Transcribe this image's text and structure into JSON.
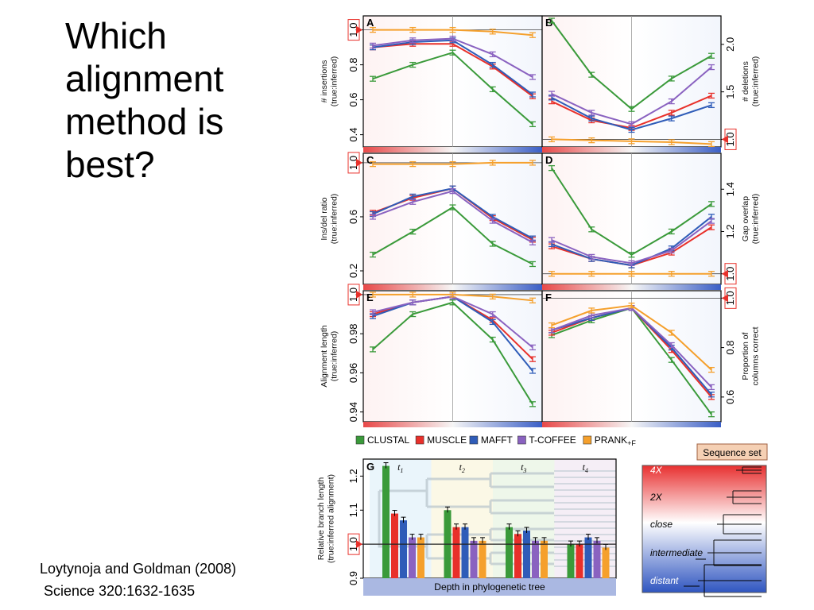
{
  "slide": {
    "title": "Which\nalignment\nmethod is\nbest?",
    "citation": "Loytynoja and Goldman (2008)\n Science 320:1632-1635"
  },
  "colors": {
    "CLUSTAL": "#3a9a3a",
    "MUSCLE": "#e8302a",
    "MAFFT": "#2f5cb8",
    "T-COFFEE": "#8a62c0",
    "PRANK": "#f5a02c",
    "reference_marker": "#e8302a"
  },
  "legend": [
    {
      "key": "CLUSTAL",
      "label": "CLUSTAL"
    },
    {
      "key": "MUSCLE",
      "label": "MUSCLE"
    },
    {
      "key": "MAFFT",
      "label": "MAFFT"
    },
    {
      "key": "T-COFFEE",
      "label": "T-COFFEE"
    },
    {
      "key": "PRANK",
      "label": "PRANK",
      "subscript": "+F"
    }
  ],
  "chart_data": [
    {
      "panel": "A",
      "type": "line",
      "ylabel": "# insertions\n(true:inferred)",
      "ylim": [
        0.33,
        1.08
      ],
      "yticks": [
        "1.0",
        "0.8",
        "0.6",
        "0.4"
      ],
      "ytick_values": [
        1.0,
        0.8,
        0.6,
        0.4
      ],
      "reference_line": 1.0,
      "axis_side": "left",
      "x": [
        1,
        2,
        3,
        4,
        5
      ],
      "series": [
        {
          "name": "CLUSTAL",
          "values": [
            0.72,
            0.8,
            0.87,
            0.66,
            0.46
          ]
        },
        {
          "name": "MUSCLE",
          "values": [
            0.9,
            0.92,
            0.92,
            0.79,
            0.62
          ]
        },
        {
          "name": "MAFFT",
          "values": [
            0.9,
            0.93,
            0.94,
            0.8,
            0.63
          ]
        },
        {
          "name": "T-COFFEE",
          "values": [
            0.91,
            0.94,
            0.95,
            0.86,
            0.73
          ]
        },
        {
          "name": "PRANK",
          "values": [
            1.0,
            1.0,
            1.0,
            0.99,
            0.97
          ]
        }
      ]
    },
    {
      "panel": "B",
      "type": "line",
      "ylabel": "# deletions\n(true:inferred)",
      "ylim": [
        0.92,
        2.3
      ],
      "yticks": [
        "2.0",
        "1.5",
        "1.0"
      ],
      "ytick_values": [
        2.0,
        1.5,
        1.0
      ],
      "reference_line": 1.0,
      "axis_side": "right",
      "x": [
        1,
        2,
        3,
        4,
        5
      ],
      "series": [
        {
          "name": "CLUSTAL",
          "values": [
            2.25,
            1.68,
            1.32,
            1.64,
            1.88
          ]
        },
        {
          "name": "MUSCLE",
          "values": [
            1.4,
            1.2,
            1.12,
            1.28,
            1.46
          ]
        },
        {
          "name": "MAFFT",
          "values": [
            1.44,
            1.22,
            1.1,
            1.22,
            1.36
          ]
        },
        {
          "name": "T-COFFEE",
          "values": [
            1.48,
            1.28,
            1.16,
            1.4,
            1.76
          ]
        },
        {
          "name": "PRANK",
          "values": [
            1.0,
            0.99,
            0.98,
            0.97,
            0.95
          ]
        }
      ]
    },
    {
      "panel": "C",
      "type": "line",
      "ylabel": "Ins/del ratio\n(true:inferred)",
      "ylim": [
        0.1,
        1.07
      ],
      "yticks": [
        "1.0",
        "0.6",
        "0.2"
      ],
      "ytick_values": [
        1.0,
        0.6,
        0.2
      ],
      "reference_line": 1.0,
      "axis_side": "left",
      "x": [
        1,
        2,
        3,
        4,
        5
      ],
      "series": [
        {
          "name": "CLUSTAL",
          "values": [
            0.32,
            0.49,
            0.67,
            0.4,
            0.25
          ]
        },
        {
          "name": "MUSCLE",
          "values": [
            0.63,
            0.74,
            0.81,
            0.59,
            0.43
          ]
        },
        {
          "name": "MAFFT",
          "values": [
            0.62,
            0.75,
            0.81,
            0.6,
            0.44
          ]
        },
        {
          "name": "T-COFFEE",
          "values": [
            0.6,
            0.71,
            0.79,
            0.57,
            0.41
          ]
        },
        {
          "name": "PRANK",
          "values": [
            0.99,
            0.99,
            0.99,
            1.0,
            1.0
          ]
        }
      ]
    },
    {
      "panel": "D",
      "type": "line",
      "ylabel": "Gap overlap\n(true:inferred)",
      "ylim": [
        0.95,
        1.57
      ],
      "yticks": [
        "1.4",
        "1.2",
        "1.0"
      ],
      "ytick_values": [
        1.4,
        1.2,
        1.0
      ],
      "reference_line": 1.0,
      "axis_side": "right",
      "x": [
        1,
        2,
        3,
        4,
        5
      ],
      "series": [
        {
          "name": "CLUSTAL",
          "values": [
            1.5,
            1.21,
            1.09,
            1.2,
            1.33
          ]
        },
        {
          "name": "MUSCLE",
          "values": [
            1.13,
            1.07,
            1.04,
            1.1,
            1.22
          ]
        },
        {
          "name": "MAFFT",
          "values": [
            1.14,
            1.07,
            1.04,
            1.12,
            1.27
          ]
        },
        {
          "name": "T-COFFEE",
          "values": [
            1.16,
            1.08,
            1.05,
            1.11,
            1.25
          ]
        },
        {
          "name": "PRANK",
          "values": [
            1.0,
            1.0,
            1.0,
            1.0,
            1.0
          ]
        }
      ]
    },
    {
      "panel": "E",
      "type": "line",
      "ylabel": "Alignment length\n(true:inferred)",
      "ylim": [
        0.935,
        1.002
      ],
      "yticks": [
        "1.0",
        "0.98",
        "0.96",
        "0.94"
      ],
      "ytick_values": [
        1.0,
        0.98,
        0.96,
        0.94
      ],
      "reference_line": 1.0,
      "axis_side": "left",
      "x": [
        1,
        2,
        3,
        4,
        5
      ],
      "series": [
        {
          "name": "CLUSTAL",
          "values": [
            0.972,
            0.99,
            0.996,
            0.977,
            0.944
          ]
        },
        {
          "name": "MUSCLE",
          "values": [
            0.99,
            0.996,
            0.999,
            0.987,
            0.967
          ]
        },
        {
          "name": "MAFFT",
          "values": [
            0.989,
            0.996,
            0.999,
            0.986,
            0.961
          ]
        },
        {
          "name": "T-COFFEE",
          "values": [
            0.991,
            0.996,
            0.999,
            0.99,
            0.973
          ]
        },
        {
          "name": "PRANK",
          "values": [
            1.0,
            1.0,
            1.0,
            0.999,
            0.997
          ]
        }
      ]
    },
    {
      "panel": "F",
      "type": "line",
      "ylabel": "Proportion of\ncolumns correct",
      "ylim": [
        0.5,
        1.03
      ],
      "yticks": [
        "1.0",
        "0.8",
        "0.6"
      ],
      "ytick_values": [
        1.0,
        0.8,
        0.6
      ],
      "reference_line": 1.0,
      "axis_side": "right",
      "x": [
        1,
        2,
        3,
        4,
        5
      ],
      "series": [
        {
          "name": "CLUSTAL",
          "values": [
            0.85,
            0.91,
            0.96,
            0.75,
            0.53
          ]
        },
        {
          "name": "MUSCLE",
          "values": [
            0.86,
            0.92,
            0.96,
            0.79,
            0.6
          ]
        },
        {
          "name": "MAFFT",
          "values": [
            0.87,
            0.92,
            0.96,
            0.8,
            0.61
          ]
        },
        {
          "name": "T-COFFEE",
          "values": [
            0.87,
            0.93,
            0.96,
            0.81,
            0.64
          ]
        },
        {
          "name": "PRANK",
          "values": [
            0.89,
            0.95,
            0.97,
            0.86,
            0.71
          ]
        }
      ]
    },
    {
      "panel": "G",
      "type": "bar",
      "ylabel": "Relative branch length\n(true:inferred alignment)",
      "xlabel": "Depth in phylogenetic tree",
      "ylim": [
        0.9,
        1.25
      ],
      "yticks": [
        "1.2",
        "1.1",
        "1.0",
        "0.9"
      ],
      "ytick_values": [
        1.2,
        1.1,
        1.0,
        0.9
      ],
      "reference_line": 1.0,
      "categories": [
        "t1",
        "t2",
        "t3",
        "t4"
      ],
      "category_labels": [
        "t",
        "t",
        "t",
        "t"
      ],
      "category_subscripts": [
        "1",
        "2",
        "3",
        "4"
      ],
      "series": [
        {
          "name": "CLUSTAL",
          "values": [
            1.23,
            1.1,
            1.05,
            1.0
          ]
        },
        {
          "name": "MUSCLE",
          "values": [
            1.09,
            1.05,
            1.03,
            1.0
          ]
        },
        {
          "name": "MAFFT",
          "values": [
            1.07,
            1.05,
            1.04,
            1.02
          ]
        },
        {
          "name": "T-COFFEE",
          "values": [
            1.02,
            1.01,
            1.01,
            1.01
          ]
        },
        {
          "name": "PRANK",
          "values": [
            1.02,
            1.01,
            1.01,
            0.99
          ]
        }
      ]
    }
  ],
  "sequence_set": {
    "title": "Sequence set",
    "levels": [
      "4X",
      "2X",
      "close",
      "intermediate",
      "distant"
    ]
  }
}
